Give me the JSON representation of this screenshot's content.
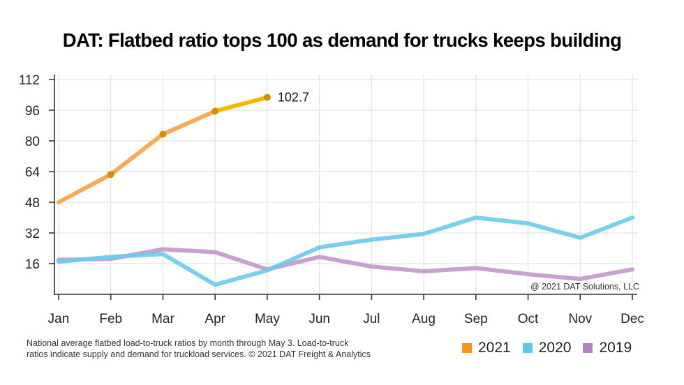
{
  "title": "DAT: Flatbed ratio tops 100 as demand for trucks keeps building",
  "footnote": {
    "line1": "National average flatbed load-to-truck ratios by month through May 3. Load-to-truck",
    "line2": "ratios indicate supply and demand for truckload services. © 2021 DAT Freight & Analytics"
  },
  "chart_data": {
    "type": "line",
    "title": "DAT: Flatbed ratio tops 100 as demand for trucks keeps building",
    "xlabel": "",
    "ylabel": "",
    "categories": [
      "Jan",
      "Feb",
      "Mar",
      "Apr",
      "May",
      "Jun",
      "Jul",
      "Aug",
      "Sep",
      "Oct",
      "Nov",
      "Dec"
    ],
    "yticks": [
      16,
      32,
      48,
      64,
      80,
      96,
      112
    ],
    "ylim": [
      0,
      112
    ],
    "grid": true,
    "legend_position": "bottom-right",
    "credit": "@ 2021 DAT Solutions, LLC",
    "series": [
      {
        "name": "2021",
        "color": "#F7A64E",
        "highlight_color": "#F5B800",
        "marker_color": "#D98E00",
        "values": [
          48,
          62.5,
          83.5,
          95.5,
          102.7
        ],
        "markers": true,
        "end_label": "102.7"
      },
      {
        "name": "2020",
        "color": "#6FCBEE",
        "values": [
          17,
          19.5,
          21,
          5,
          12.5,
          24.5,
          28.5,
          31.5,
          40,
          37,
          29.5,
          40
        ]
      },
      {
        "name": "2019",
        "color": "#C29ACB",
        "values": [
          18,
          18.5,
          23.5,
          22,
          13,
          19.5,
          14.5,
          12,
          13.7,
          10.5,
          8,
          13
        ]
      }
    ]
  },
  "legend": [
    {
      "label": "2021",
      "color": "#F7941D"
    },
    {
      "label": "2020",
      "color": "#5BC6EE"
    },
    {
      "label": "2019",
      "color": "#B583C0"
    }
  ]
}
